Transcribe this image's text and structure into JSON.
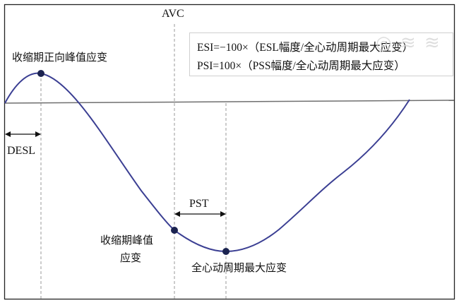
{
  "labels": {
    "avc": "AVC",
    "early_peak": "收缩期正向峰值应变",
    "desl": "DESL",
    "pst": "PST",
    "systolic_peak_line1": "收缩期峰值",
    "systolic_peak_line2": "应变",
    "global_peak": "全心动周期最大应变"
  },
  "legend": {
    "esi": "ESI=−100×（ESL幅度/全心动周期最大应变）",
    "psi": "PSI=100×（PSS幅度/全心动周期最大应变）"
  },
  "colors": {
    "curve": "#3b3f93",
    "marker": "#1b2350",
    "baseline": "#6f6f6f",
    "dashed": "#9a9a9a",
    "frame": "#222222"
  }
}
